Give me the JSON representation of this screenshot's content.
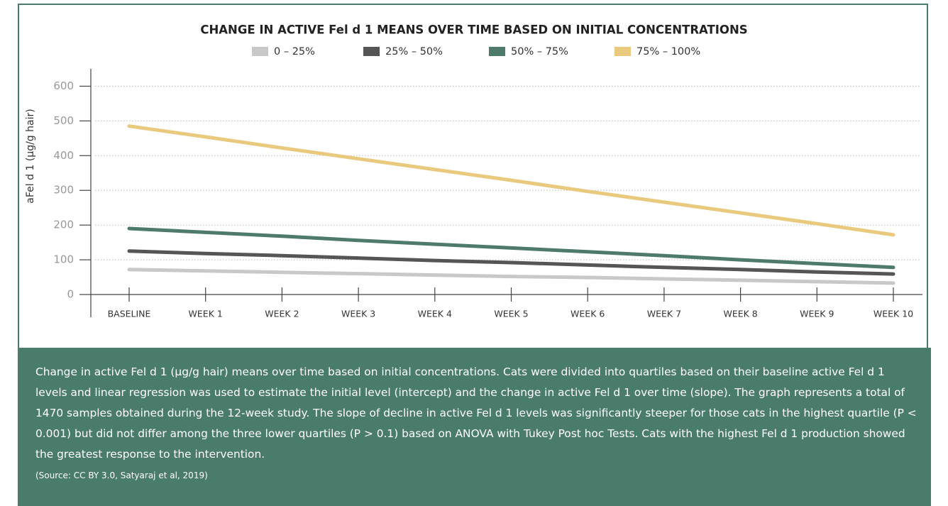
{
  "chart_data": {
    "type": "line",
    "title": "CHANGE IN ACTIVE Fel d 1 MEANS OVER TIME BASED ON INITIAL CONCENTRATIONS",
    "ylabel": "aFel d 1 (µg/g hair)",
    "categories": [
      "BASELINE",
      "WEEK 1",
      "WEEK 2",
      "WEEK 3",
      "WEEK 4",
      "WEEK 5",
      "WEEK 6",
      "WEEK 7",
      "WEEK 8",
      "WEEK 9",
      "WEEK 10"
    ],
    "series": [
      {
        "name": "0 – 25%",
        "color": "#c8c8c8",
        "values": [
          72,
          68,
          64,
          60,
          56,
          52,
          49,
          45,
          41,
          37,
          33
        ]
      },
      {
        "name": "25% – 50%",
        "color": "#555555",
        "values": [
          125,
          118,
          112,
          105,
          98,
          92,
          85,
          78,
          72,
          65,
          59
        ]
      },
      {
        "name": "50% – 75%",
        "color": "#4e7a6a",
        "values": [
          190,
          179,
          168,
          156,
          145,
          134,
          123,
          112,
          100,
          89,
          78
        ]
      },
      {
        "name": "75% – 100%",
        "color": "#e8c97e",
        "values": [
          485,
          454,
          422,
          391,
          360,
          329,
          297,
          266,
          235,
          204,
          172
        ]
      }
    ],
    "ylim": [
      0,
      650
    ],
    "yticks": [
      0,
      100,
      200,
      300,
      400,
      500,
      600
    ],
    "grid": true
  },
  "caption": {
    "text": "Change in active Fel d 1 (µg/g hair) means over time based on initial concentrations. Cats were divided into quartiles based on their baseline active Fel d 1 levels and linear regression was used to estimate the initial level (intercept) and the change in active Fel d 1 over time (slope). The graph represents a total of 1470 samples obtained during the 12-week study. The slope of decline in active Fel d 1 levels was significantly steeper for those cats in the highest quartile (P < 0.001) but did not differ among the three lower quartiles (P > 0.1) based on ANOVA with Tukey Post hoc Tests. Cats with the highest Fel d 1 production showed the greatest response to the intervention.",
    "source": "(Source: CC BY 3.0, Satyaraj et al, 2019)"
  }
}
